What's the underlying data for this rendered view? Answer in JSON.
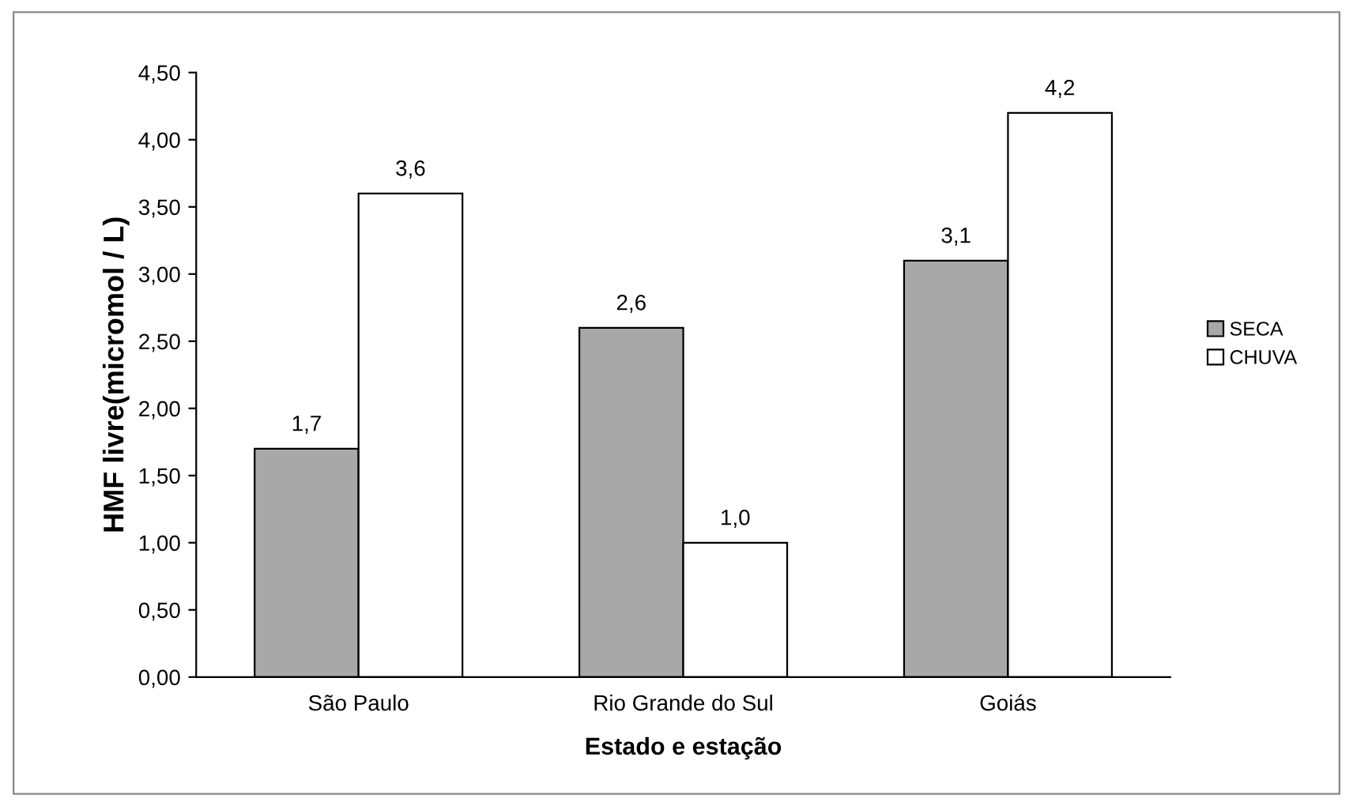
{
  "chart_data": {
    "type": "bar",
    "xlabel": "Estado e estação",
    "ylabel": "HMF livre(micromol / L)",
    "categories": [
      "São Paulo",
      "Rio Grande do Sul",
      "Goiás"
    ],
    "series": [
      {
        "name": "SECA",
        "color": "#a8a8a8",
        "values": [
          1.7,
          2.6,
          3.1
        ],
        "value_labels": [
          "1,7",
          "2,6",
          "3,1"
        ]
      },
      {
        "name": "CHUVA",
        "color": "#ffffff",
        "values": [
          3.6,
          1.0,
          4.2
        ],
        "value_labels": [
          "3,6",
          "1,0",
          "4,2"
        ]
      }
    ],
    "ylim": [
      0,
      4.5
    ],
    "yticks": [
      {
        "value": 0,
        "label": "0,00"
      },
      {
        "value": 0.5,
        "label": "0,50"
      },
      {
        "value": 1,
        "label": "1,00"
      },
      {
        "value": 1.5,
        "label": "1,50"
      },
      {
        "value": 2,
        "label": "2,00"
      },
      {
        "value": 2.5,
        "label": "2,50"
      },
      {
        "value": 3,
        "label": "3,00"
      },
      {
        "value": 3.5,
        "label": "3,50"
      },
      {
        "value": 4,
        "label": "4,00"
      },
      {
        "value": 4.5,
        "label": "4,50"
      }
    ],
    "grid": false,
    "legend": "right"
  }
}
